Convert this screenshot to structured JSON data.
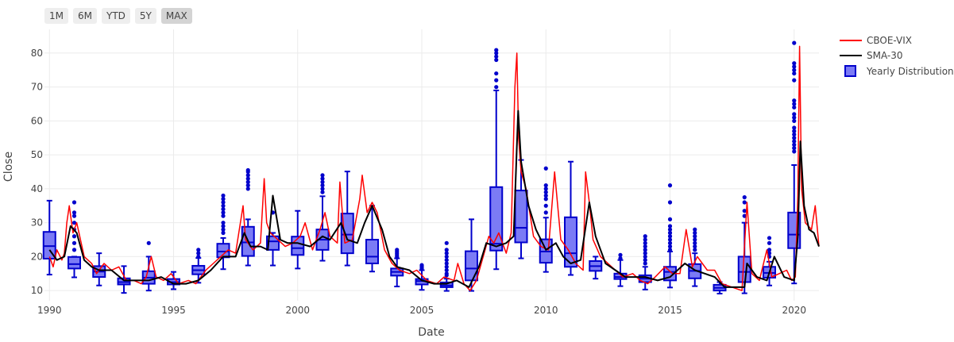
{
  "range_selector": {
    "buttons": [
      {
        "label": "1M",
        "active": false
      },
      {
        "label": "6M",
        "active": false
      },
      {
        "label": "YTD",
        "active": false
      },
      {
        "label": "5Y",
        "active": false
      },
      {
        "label": "MAX",
        "active": true
      }
    ]
  },
  "colors": {
    "vix": "#ff0000",
    "sma": "#000000",
    "box_fill": "#7b7bf5",
    "box_line": "#0000cc",
    "grid": "#ebebeb"
  },
  "chart_data": {
    "type": "line",
    "title": "",
    "xlabel": "Date",
    "ylabel": "Close",
    "xlim": [
      1989.8,
      2021.0
    ],
    "ylim": [
      7,
      87
    ],
    "x_ticks": [
      "1990",
      "1995",
      "2000",
      "2005",
      "2010",
      "2015",
      "2020"
    ],
    "y_ticks": [
      "10",
      "20",
      "30",
      "40",
      "50",
      "60",
      "70",
      "80"
    ],
    "grid": true,
    "legend_position": "top-right",
    "legend": [
      "CBOE-VIX",
      "SMA-30",
      "Yearly Distribution"
    ],
    "series": [
      {
        "name": "CBOE-VIX",
        "x": [
          1990.0,
          1990.15,
          1990.3,
          1990.5,
          1990.6,
          1990.7,
          1990.8,
          1990.95,
          1991.1,
          1991.4,
          1991.7,
          1991.9,
          1992.2,
          1992.5,
          1992.8,
          1993.1,
          1993.4,
          1993.7,
          1993.9,
          1994.1,
          1994.3,
          1994.6,
          1994.9,
          1995.2,
          1995.6,
          1995.9,
          1996.3,
          1996.6,
          1996.9,
          1997.2,
          1997.5,
          1997.8,
          1997.9,
          1998.2,
          1998.5,
          1998.65,
          1998.75,
          1998.9,
          1999.2,
          1999.5,
          1999.8,
          2000.1,
          2000.3,
          2000.6,
          2000.9,
          2001.1,
          2001.3,
          2001.6,
          2001.7,
          2001.9,
          2002.2,
          2002.5,
          2002.6,
          2002.8,
          2003.0,
          2003.2,
          2003.5,
          2003.8,
          2004.1,
          2004.5,
          2004.8,
          2005.2,
          2005.6,
          2005.9,
          2006.3,
          2006.45,
          2006.7,
          2006.95,
          2007.2,
          2007.55,
          2007.7,
          2007.9,
          2008.1,
          2008.4,
          2008.6,
          2008.75,
          2008.83,
          2008.9,
          2009.0,
          2009.2,
          2009.5,
          2009.8,
          2010.1,
          2010.35,
          2010.6,
          2010.9,
          2011.2,
          2011.5,
          2011.6,
          2011.75,
          2011.9,
          2012.2,
          2012.5,
          2012.8,
          2013.1,
          2013.5,
          2013.8,
          2014.1,
          2014.4,
          2014.8,
          2015.1,
          2015.4,
          2015.65,
          2015.9,
          2016.1,
          2016.5,
          2016.8,
          2017.1,
          2017.5,
          2017.9,
          2018.1,
          2018.3,
          2018.6,
          2018.9,
          2019.1,
          2019.4,
          2019.7,
          2019.9,
          2020.05,
          2020.15,
          2020.22,
          2020.3,
          2020.45,
          2020.7,
          2020.85,
          2021.0
        ],
        "values": [
          20,
          17,
          22,
          19,
          21,
          30,
          35,
          27,
          30,
          20,
          18,
          15,
          18,
          16,
          17,
          13,
          13,
          12,
          14,
          20,
          14,
          13,
          15,
          12,
          13,
          12,
          16,
          18,
          20,
          22,
          21,
          35,
          25,
          22,
          24,
          43,
          30,
          27,
          25,
          23,
          24,
          26,
          30,
          22,
          28,
          33,
          26,
          24,
          42,
          24,
          25,
          37,
          44,
          33,
          36,
          33,
          22,
          18,
          16,
          15,
          16,
          13,
          12,
          14,
          13,
          18,
          12,
          10,
          13,
          22,
          26,
          24,
          27,
          21,
          27,
          70,
          80,
          55,
          45,
          40,
          26,
          23,
          22,
          45,
          25,
          22,
          18,
          16,
          45,
          36,
          25,
          20,
          18,
          16,
          14,
          15,
          13,
          12,
          14,
          17,
          15,
          15,
          28,
          17,
          20,
          16,
          16,
          12,
          11,
          10,
          36,
          15,
          13,
          22,
          14,
          15,
          16,
          13,
          14,
          38,
          82,
          40,
          30,
          28,
          35,
          23
        ]
      },
      {
        "name": "SMA-30",
        "x": [
          1990.0,
          1990.3,
          1990.6,
          1990.85,
          1991.1,
          1991.4,
          1991.7,
          1992.0,
          1992.5,
          1993.0,
          1993.5,
          1994.0,
          1994.5,
          1995.0,
          1995.5,
          1996.0,
          1996.5,
          1997.0,
          1997.5,
          1997.85,
          1998.1,
          1998.5,
          1998.8,
          1999.0,
          1999.3,
          1999.6,
          2000.0,
          2000.5,
          2001.0,
          2001.3,
          2001.75,
          2002.0,
          2002.4,
          2002.7,
          2003.0,
          2003.4,
          2003.7,
          2004.0,
          2004.5,
          2005.0,
          2005.5,
          2006.0,
          2006.4,
          2006.9,
          2007.3,
          2007.6,
          2008.0,
          2008.4,
          2008.7,
          2008.88,
          2009.0,
          2009.3,
          2009.6,
          2010.0,
          2010.4,
          2010.7,
          2011.0,
          2011.4,
          2011.75,
          2012.0,
          2012.4,
          2012.8,
          2013.2,
          2013.6,
          2014.0,
          2014.5,
          2015.0,
          2015.6,
          2016.0,
          2016.4,
          2016.8,
          2017.2,
          2017.6,
          2018.0,
          2018.1,
          2018.5,
          2018.9,
          2019.2,
          2019.6,
          2020.0,
          2020.15,
          2020.25,
          2020.4,
          2020.6,
          2020.8,
          2021.0
        ],
        "values": [
          22,
          19,
          20,
          29,
          27,
          19,
          17,
          16,
          16,
          13,
          13,
          13,
          14,
          12,
          12,
          13,
          16,
          20,
          20,
          27,
          23,
          23,
          22,
          38,
          25,
          24,
          24,
          23,
          26,
          25,
          30,
          25,
          24,
          30,
          35,
          28,
          20,
          17,
          16,
          13,
          12,
          12,
          13,
          11,
          17,
          24,
          23,
          24,
          26,
          63,
          48,
          35,
          28,
          22,
          24,
          20,
          18,
          19,
          36,
          26,
          18,
          16,
          14,
          14,
          14,
          13,
          14,
          18,
          16,
          15,
          14,
          11,
          11,
          11,
          18,
          14,
          13,
          20,
          14,
          13,
          26,
          54,
          35,
          28,
          27,
          23
        ]
      }
    ],
    "yearly_distribution": {
      "name": "Yearly Distribution",
      "years": [
        1990,
        1991,
        1992,
        1993,
        1994,
        1995,
        1996,
        1997,
        1998,
        1999,
        2000,
        2001,
        2002,
        2003,
        2004,
        2005,
        2006,
        2007,
        2008,
        2009,
        2010,
        2011,
        2012,
        2013,
        2014,
        2015,
        2016,
        2017,
        2018,
        2019,
        2020
      ],
      "q1": [
        19.4,
        16.5,
        14.0,
        11.8,
        12.0,
        11.8,
        14.8,
        19.8,
        20.2,
        22.0,
        20.5,
        22.0,
        21.0,
        18.0,
        14.4,
        11.8,
        11.0,
        13.0,
        21.8,
        24.2,
        18.2,
        17.0,
        15.8,
        13.4,
        12.5,
        13.0,
        13.6,
        10.0,
        12.5,
        13.8,
        22.5
      ],
      "median": [
        23.1,
        17.8,
        15.6,
        12.5,
        13.8,
        12.5,
        16.0,
        21.5,
        24.2,
        24.5,
        22.5,
        25.0,
        26.5,
        20.0,
        15.5,
        12.8,
        11.5,
        16.5,
        23.8,
        28.5,
        21.5,
        21.0,
        17.2,
        14.0,
        13.5,
        15.5,
        15.8,
        10.8,
        15.5,
        15.2,
        26.5
      ],
      "q3": [
        27.3,
        19.9,
        17.2,
        13.6,
        15.7,
        13.4,
        17.3,
        23.8,
        28.8,
        26.0,
        25.9,
        28.0,
        32.7,
        25.0,
        16.5,
        13.4,
        12.4,
        21.6,
        40.5,
        39.5,
        25.1,
        31.6,
        18.7,
        15.0,
        14.5,
        17.0,
        17.8,
        11.7,
        20.0,
        17.0,
        33.0
      ],
      "whisker_low": [
        14.7,
        13.9,
        11.5,
        9.3,
        10.0,
        10.4,
        12.3,
        16.3,
        17.4,
        17.4,
        16.5,
        18.8,
        17.4,
        15.6,
        11.2,
        10.2,
        9.9,
        9.9,
        16.3,
        19.5,
        15.5,
        14.6,
        13.5,
        11.3,
        10.3,
        10.9,
        11.3,
        9.1,
        9.2,
        11.5,
        12.1
      ],
      "whisker_high": [
        36.5,
        20.0,
        21.0,
        17.2,
        20.0,
        15.5,
        19.6,
        25.5,
        31.0,
        27.0,
        33.5,
        37.8,
        45.1,
        35.0,
        19.5,
        16.0,
        13.5,
        31.0,
        69.0,
        48.5,
        31.5,
        48.0,
        20.0,
        19.0,
        17.0,
        21.5,
        21.0,
        12.5,
        30.0,
        18.5,
        47.0
      ],
      "outliers": [
        [],
        [
          22,
          24,
          26,
          28,
          30,
          32,
          33,
          36
        ],
        [],
        [],
        [
          24
        ],
        [],
        [
          20,
          21,
          22
        ],
        [
          27,
          28,
          29,
          30,
          32,
          33,
          34,
          35,
          36,
          37,
          38
        ],
        [
          40,
          41,
          42,
          43,
          44,
          45,
          45.5
        ],
        [
          33
        ],
        [],
        [
          39,
          40,
          41,
          42,
          43,
          44
        ],
        [],
        [],
        [
          20,
          20.5,
          21,
          21.5,
          22
        ],
        [
          16.5,
          17,
          17.5
        ],
        [
          14.5,
          15,
          16,
          17,
          18,
          19,
          20,
          21,
          22,
          24
        ],
        [],
        [
          70,
          72,
          74,
          78,
          79,
          80,
          80.9
        ],
        [],
        [
          33,
          35,
          37,
          38,
          39,
          40,
          41,
          46
        ],
        [],
        [],
        [
          19.5,
          20.5
        ],
        [
          18,
          19,
          20,
          21,
          22,
          23,
          24,
          25,
          26
        ],
        [
          22,
          23,
          24,
          25,
          26,
          27,
          28,
          29,
          31,
          36,
          41
        ],
        [
          22,
          23,
          24,
          25,
          26,
          27,
          28
        ],
        [],
        [
          32,
          33.5,
          36,
          37.5
        ],
        [
          20,
          21,
          22,
          24,
          25.5
        ],
        [
          51,
          52,
          53,
          54,
          55,
          56,
          57,
          58,
          60,
          61,
          62,
          64,
          65,
          66,
          72,
          74,
          75,
          76,
          77,
          83
        ]
      ]
    }
  }
}
